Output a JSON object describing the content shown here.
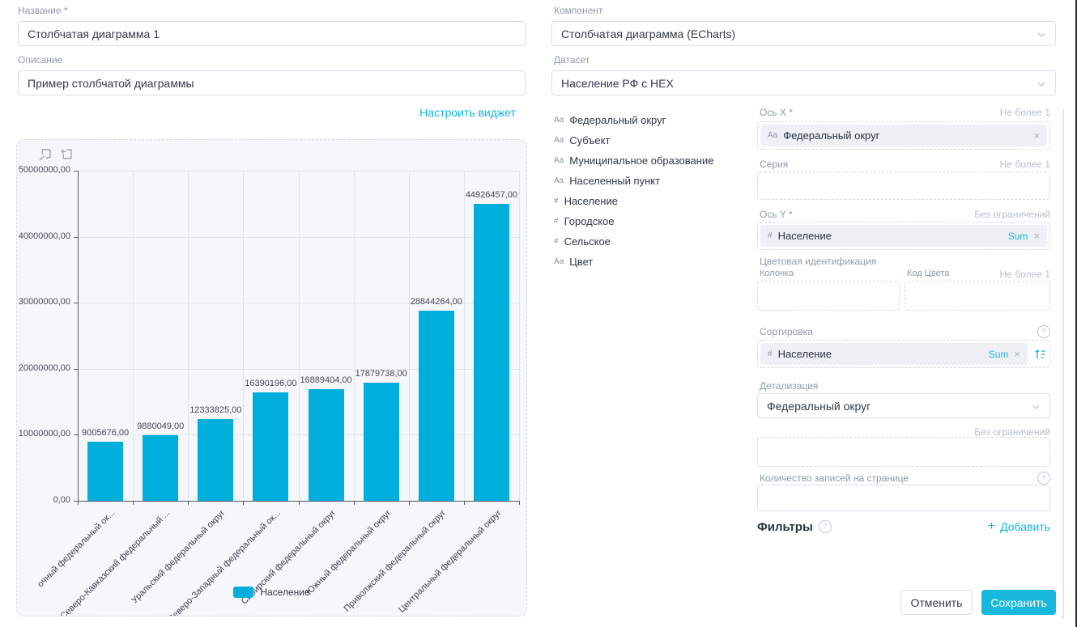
{
  "icons": {
    "remove_x": "×",
    "help": "?",
    "plus": "+"
  },
  "left_form": {
    "name_label": "Название *",
    "name_value": "Столбчатая диаграмма 1",
    "description_label": "Описание",
    "description_value": "Пример столбчатой диаграммы",
    "configure_link": "Настроить виджет"
  },
  "right_form": {
    "component_label": "Компонент",
    "component_value": "Столбчатая диаграмма (ECharts)",
    "dataset_label": "Датасет",
    "dataset_value": "Население РФ с HEX"
  },
  "fields": [
    {
      "type": "Aa",
      "label": "Федеральный округ"
    },
    {
      "type": "Aa",
      "label": "Субъект"
    },
    {
      "type": "Aa",
      "label": "Муниципальное образование"
    },
    {
      "type": "Aa",
      "label": "Населенный пункт"
    },
    {
      "type": "#",
      "label": "Население"
    },
    {
      "type": "#",
      "label": "Городское"
    },
    {
      "type": "#",
      "label": "Сельское"
    },
    {
      "type": "Aa",
      "label": "Цвет"
    }
  ],
  "config": {
    "x_axis": {
      "label": "Ось X *",
      "limit": "Не более 1",
      "chip": {
        "type": "Aa",
        "label": "Федеральный округ"
      }
    },
    "series": {
      "label": "Серия",
      "limit": "Не более 1"
    },
    "y_axis": {
      "label": "Ось Y *",
      "limit": "Без ограничений",
      "chip": {
        "type": "#",
        "label": "Население",
        "agg": "Sum"
      }
    },
    "color_identification": {
      "label": "Цветовая идентификация",
      "column_label": "Колонка",
      "code_label": "Код Цвета",
      "limit": "Не более 1"
    },
    "sorting": {
      "label": "Сортировка",
      "chip": {
        "type": "#",
        "label": "Население",
        "agg": "Sum"
      }
    },
    "detail": {
      "label": "Детализация",
      "value": "Федеральный округ"
    },
    "records": {
      "limit": "Без ограничений",
      "label": "Количество записей на странице"
    },
    "filters": {
      "label": "Фильтры",
      "add_label": "Добавить"
    }
  },
  "footer": {
    "cancel_label": "Отменить",
    "save_label": "Сохранить"
  },
  "chart_data": {
    "type": "bar",
    "title": "",
    "xlabel": "",
    "ylabel": "",
    "categories": [
      "очный федеральный ок...",
      "Северо-Кавказский федеральный ...",
      "Уральский федеральный округ",
      "Северо-Западный федеральный ок...",
      "Сибирский федеральный округ",
      "Южный федеральный округ",
      "Приволжский федеральный округ",
      "Центральный федеральный округ"
    ],
    "values": [
      9005676,
      9880049,
      12333825,
      16390196,
      16889404,
      17879738,
      28844264,
      44926457
    ],
    "value_labels": [
      "9005676,00",
      "9880049,00",
      "12333825,00",
      "16390196,00",
      "16889404,00",
      "17879738,00",
      "28844264,00",
      "44926457,00"
    ],
    "y_ticks": [
      "50000000,00",
      "40000000,00",
      "30000000,00",
      "20000000,00",
      "10000000,00",
      "0,00"
    ],
    "ylim": [
      0,
      50000000
    ],
    "grid": true,
    "legend": "Население",
    "legend_position": "bottom",
    "bar_color": "#00aedb"
  }
}
